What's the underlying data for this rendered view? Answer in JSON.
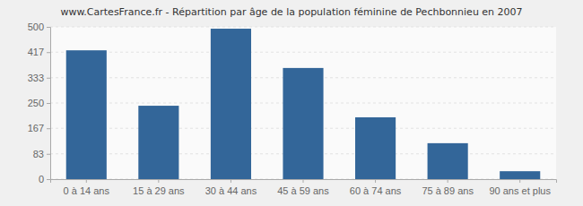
{
  "chart_data": {
    "type": "bar",
    "title": "www.CartesFrance.fr - Répartition par âge de la population féminine de Pechbonnieu en 2007",
    "categories": [
      "0 à 14 ans",
      "15 à 29 ans",
      "30 à 44 ans",
      "45 à 59 ans",
      "60 à 74 ans",
      "75 à 89 ans",
      "90 ans et plus"
    ],
    "values": [
      423,
      241,
      494,
      365,
      203,
      118,
      26
    ],
    "color": "#336699",
    "ylim": [
      0,
      500
    ],
    "yticks": [
      0,
      83,
      167,
      250,
      333,
      417,
      500
    ],
    "grid": true
  }
}
